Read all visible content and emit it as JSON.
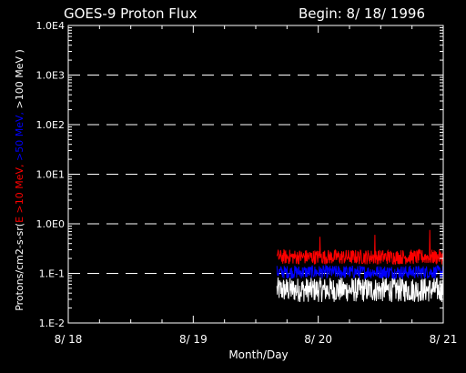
{
  "chart_data": {
    "type": "line",
    "title": "GOES-9 Proton Flux",
    "subtitle": "Begin: 8/ 18/ 1996",
    "xlabel": "Month/Day",
    "ylabel_segments": [
      {
        "text": "Protons/cm2-s-sr(",
        "color": "#ffffff"
      },
      {
        "text": "E >10 MeV, ",
        "color": "#ff0000"
      },
      {
        "text": ">50 MeV, ",
        "color": "#0000ff"
      },
      {
        "text": ">100 MeV )",
        "color": "#ffffff"
      }
    ],
    "x_ticks": [
      "8/ 18",
      "8/ 19",
      "8/ 20",
      "8/ 21"
    ],
    "xlim_days": [
      0,
      3
    ],
    "y_ticks": [
      "1.0E4",
      "1.0E3",
      "1.0E2",
      "1.0E1",
      "1.0E0",
      "1.E-1",
      "1.E-2"
    ],
    "y_log_range": [
      -2,
      4
    ],
    "grid": "dashed horizontal at each decade",
    "series": [
      {
        "name": ">10 MeV",
        "color": "#ff0000",
        "x_start_day": 1.67,
        "x_end_day": 3.0,
        "baseline": 0.2,
        "spread_log": [
          -0.12,
          0.18
        ],
        "spikes": [
          0.75,
          0.6,
          0.55
        ]
      },
      {
        "name": ">50 MeV",
        "color": "#0000ff",
        "x_start_day": 1.67,
        "x_end_day": 3.0,
        "baseline": 0.11,
        "spread_log": [
          -0.15,
          0.12
        ],
        "spikes": []
      },
      {
        "name": ">100 MeV",
        "color": "#ffffff",
        "x_start_day": 1.67,
        "x_end_day": 3.0,
        "baseline": 0.05,
        "spread_log": [
          -0.28,
          0.22
        ],
        "spikes": []
      }
    ]
  }
}
